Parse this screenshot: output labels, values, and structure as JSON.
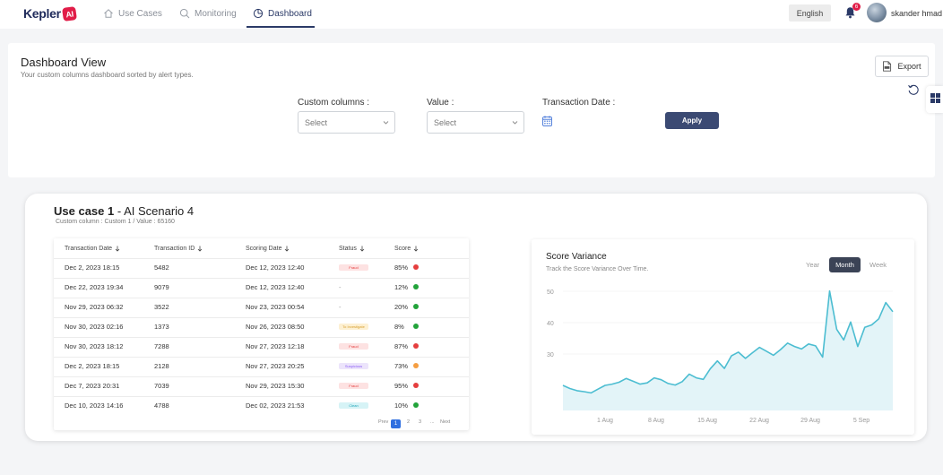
{
  "nav": {
    "logo_text": "Kepler",
    "logo_badge": "AI",
    "items": [
      {
        "label": "Use Cases",
        "icon": "home-icon"
      },
      {
        "label": "Monitoring",
        "icon": "search-icon"
      },
      {
        "label": "Dashboard",
        "icon": "pie-chart-icon",
        "active": true
      }
    ],
    "language": "English",
    "notification_count": "6",
    "username": "skander hmad"
  },
  "dashboard": {
    "title": "Dashboard View",
    "subtitle": "Your custom columns dashboard sorted by alert types.",
    "export_label": "Export",
    "filters": {
      "custom_columns_label": "Custom columns :",
      "custom_columns_value": "Select",
      "value_label": "Value :",
      "value_value": "Select",
      "transaction_date_label": "Transaction Date :",
      "apply_label": "Apply"
    }
  },
  "use_case": {
    "title_bold": "Use case 1",
    "title_rest": " - AI Scenario 4",
    "subtitle": "Custom column : Custom 1 / Value : 65160",
    "columns": [
      "Transaction Date",
      "Transaction ID",
      "Scoring Date",
      "Status",
      "Score"
    ],
    "rows": [
      {
        "date": "Dec 2, 2023 18:15",
        "id": "5482",
        "scoring": "Dec 12, 2023 12:40",
        "status": "Fraud",
        "score": "85%",
        "dot": "#e53e3e"
      },
      {
        "date": "Dec 22, 2023 19:34",
        "id": "9079",
        "scoring": "Dec 12, 2023 12:40",
        "status": "-",
        "score": "12%",
        "dot": "#22a33a"
      },
      {
        "date": "Nov 29, 2023 06:32",
        "id": "3522",
        "scoring": "Nov 23, 2023 00:54",
        "status": "-",
        "score": "20%",
        "dot": "#22a33a"
      },
      {
        "date": "Nov 30, 2023 02:16",
        "id": "1373",
        "scoring": "Nov 26, 2023 08:50",
        "status": "To Investigate",
        "score": "8%",
        "dot": "#22a33a"
      },
      {
        "date": "Nov 30, 2023 18:12",
        "id": "7288",
        "scoring": "Nov 27, 2023 12:18",
        "status": "Fraud",
        "score": "87%",
        "dot": "#e53e3e"
      },
      {
        "date": "Dec 2, 2023 18:15",
        "id": "2128",
        "scoring": "Nov 27, 2023 20:25",
        "status": "Suspicious",
        "score": "73%",
        "dot": "#f59e42"
      },
      {
        "date": "Dec 7, 2023 20:31",
        "id": "7039",
        "scoring": "Nov 29, 2023 15:30",
        "status": "Fraud",
        "score": "95%",
        "dot": "#e53e3e"
      },
      {
        "date": "Dec 10, 2023 14:16",
        "id": "4788",
        "scoring": "Dec 02, 2023 21:53",
        "status": "Clean",
        "score": "10%",
        "dot": "#22a33a"
      }
    ],
    "pagination": {
      "prev": "Prev",
      "pages": [
        "1",
        "2",
        "3",
        "..."
      ],
      "next": "Next"
    }
  },
  "score_variance": {
    "title": "Score Variance",
    "subtitle": "Track the Score Variance Over Time.",
    "periods": [
      "Year",
      "Month",
      "Week"
    ],
    "active_period": "Month"
  },
  "chart_data": {
    "type": "area",
    "title": "Score Variance",
    "x_tick_labels": [
      "1 Aug",
      "8 Aug",
      "15 Aug",
      "22 Aug",
      "29 Aug",
      "5 Sep"
    ],
    "y_ticks": [
      30,
      40,
      50
    ],
    "ylim": [
      12,
      52
    ],
    "x": [
      0,
      1,
      2,
      3,
      4,
      5,
      6,
      7,
      8,
      9,
      10,
      11,
      12,
      13,
      14,
      15,
      16,
      17,
      18,
      19,
      20,
      21,
      22,
      23,
      24,
      25,
      26,
      27,
      28,
      29,
      30,
      31,
      32,
      33,
      34,
      35,
      36,
      37,
      38,
      39,
      40,
      41,
      42,
      43,
      44,
      45,
      46,
      47
    ],
    "values": [
      20,
      19,
      18.3,
      18,
      17.6,
      18.8,
      20,
      20.4,
      21,
      22.2,
      21.3,
      20.4,
      20.8,
      22.4,
      21.8,
      20.6,
      20.1,
      21.2,
      23.6,
      22.4,
      21.9,
      25.3,
      27.8,
      25.4,
      29.4,
      30.6,
      28.6,
      30.4,
      32.1,
      30.9,
      29.6,
      31.4,
      33.5,
      32.4,
      31.6,
      33.2,
      32.6,
      29,
      50.1,
      37.9,
      34.5,
      40.2,
      32.4,
      38.5,
      39.3,
      41.2,
      46.4,
      43.5
    ],
    "color": "#4cbdd1",
    "fill": "#e3f4f8"
  }
}
